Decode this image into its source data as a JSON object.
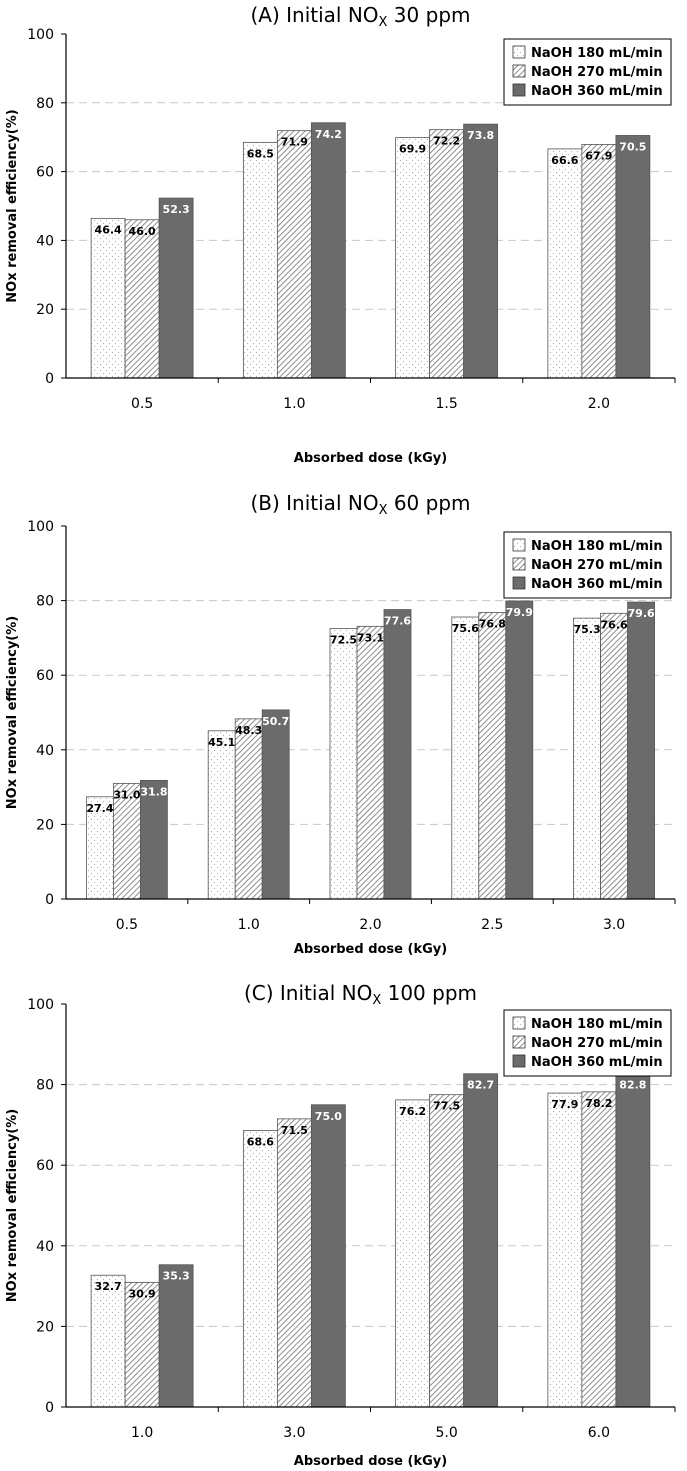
{
  "chart_data": [
    {
      "type": "bar",
      "title": "(A) Initial NO",
      "title_sub": "X",
      "title_tail": " 30 ppm",
      "xlabel": "Absorbed dose (kGy)",
      "ylabel": "NOx removal efficiency(%)",
      "ylim": [
        0,
        100
      ],
      "yticks": [
        "0",
        "20",
        "40",
        "60",
        "80",
        "100"
      ],
      "grid": true,
      "legend_position": "top-right",
      "categories": [
        "0.5",
        "1.0",
        "1.5",
        "2.0"
      ],
      "series": [
        {
          "name": "NaOH 180 mL/min",
          "values": [
            46.4,
            68.5,
            69.9,
            66.6
          ],
          "labels": [
            "46.4",
            "68.5",
            "69.9",
            "66.6"
          ]
        },
        {
          "name": "NaOH 270 mL/min",
          "values": [
            46.0,
            71.9,
            72.2,
            67.9
          ],
          "labels": [
            "46.0",
            "71.9",
            "72.2",
            "67.9"
          ]
        },
        {
          "name": "NaOH 360 mL/min",
          "values": [
            52.3,
            74.2,
            73.8,
            70.5
          ],
          "labels": [
            "52.3",
            "74.2",
            "73.8",
            "70.5"
          ]
        }
      ]
    },
    {
      "type": "bar",
      "title": "(B) Initial NO",
      "title_sub": "X",
      "title_tail": " 60 ppm",
      "xlabel": "Absorbed dose (kGy)",
      "ylabel": "NOx removal efficiency(%)",
      "ylim": [
        0,
        100
      ],
      "yticks": [
        "0",
        "20",
        "40",
        "60",
        "80",
        "100"
      ],
      "grid": true,
      "legend_position": "top-right",
      "categories": [
        "0.5",
        "1.0",
        "2.0",
        "2.5",
        "3.0"
      ],
      "series": [
        {
          "name": "NaOH 180 mL/min",
          "values": [
            27.4,
            45.1,
            72.5,
            75.6,
            75.3
          ],
          "labels": [
            "27.4",
            "45.1",
            "72.5",
            "75.6",
            "75.3"
          ]
        },
        {
          "name": "NaOH 270 mL/min",
          "values": [
            31.0,
            48.3,
            73.1,
            76.8,
            76.6
          ],
          "labels": [
            "31.0",
            "48.3",
            "73.1",
            "76.8",
            "76.6"
          ]
        },
        {
          "name": "NaOH 360 mL/min",
          "values": [
            31.8,
            50.7,
            77.6,
            79.9,
            79.6
          ],
          "labels": [
            "31.8",
            "50.7",
            "77.6",
            "79.9",
            "79.6"
          ]
        }
      ]
    },
    {
      "type": "bar",
      "title": "(C) Initial NO",
      "title_sub": "X",
      "title_tail": " 100 ppm",
      "xlabel": "Absorbed dose (kGy)",
      "ylabel": "NOx removal efficiency(%)",
      "ylim": [
        0,
        100
      ],
      "yticks": [
        "0",
        "20",
        "40",
        "60",
        "80",
        "100"
      ],
      "grid": true,
      "legend_position": "top-right",
      "categories": [
        "1.0",
        "3.0",
        "5.0",
        "6.0"
      ],
      "series": [
        {
          "name": "NaOH 180 mL/min",
          "values": [
            32.7,
            68.6,
            76.2,
            77.9
          ],
          "labels": [
            "32.7",
            "68.6",
            "76.2",
            "77.9"
          ]
        },
        {
          "name": "NaOH 270 mL/min",
          "values": [
            30.9,
            71.5,
            77.5,
            78.2
          ],
          "labels": [
            "30.9",
            "71.5",
            "77.5",
            "78.2"
          ]
        },
        {
          "name": "NaOH 360 mL/min",
          "values": [
            35.3,
            75.0,
            82.7,
            82.8
          ],
          "labels": [
            "35.3",
            "75.0",
            "82.7",
            "82.8"
          ]
        }
      ]
    }
  ],
  "colors": {
    "series_180_fill": "#ffffff",
    "series_180_dots": "#b0b0b0",
    "series_270_hatch": "#707070",
    "series_360_fill": "#6b6b6b",
    "grid": "#c8c8c8",
    "axis": "#000000"
  }
}
